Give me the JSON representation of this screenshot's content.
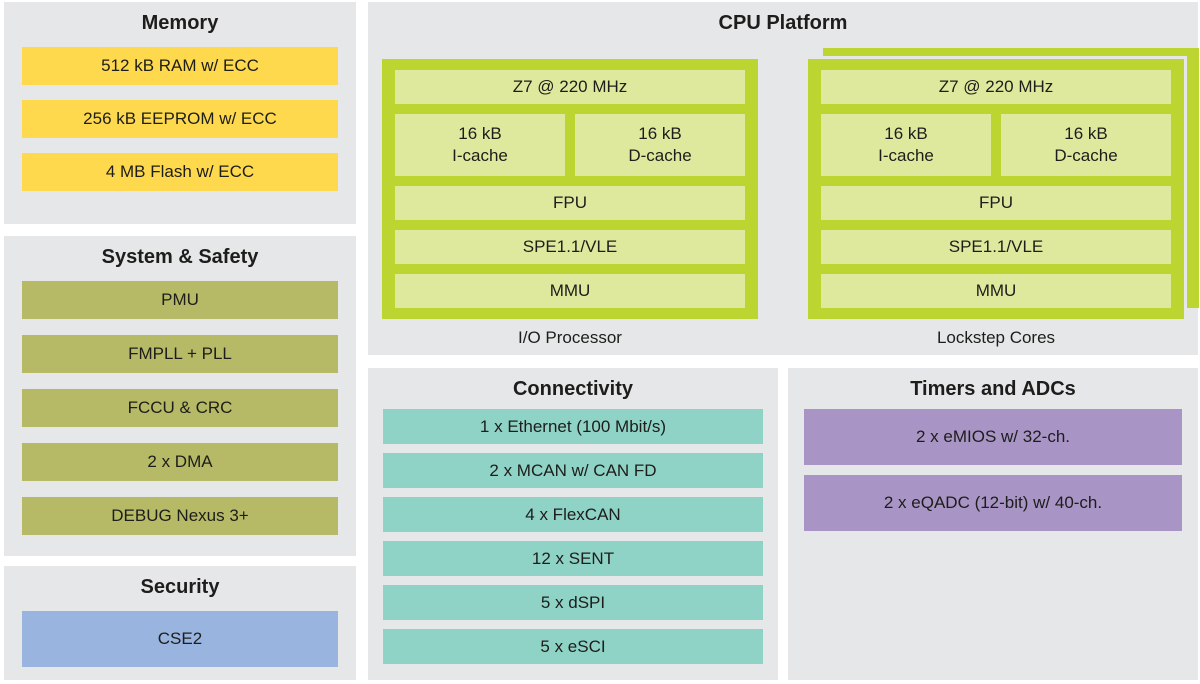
{
  "colors": {
    "page_bg": "#ffffff",
    "panel_bg": "#e6e7e8",
    "memory_block": "#ffd94d",
    "system_block": "#b6ba66",
    "security_block": "#99b5df",
    "core_frame": "#bdd531",
    "core_cell": "#dfe99e",
    "connectivity_block": "#8fd2c6",
    "timers_block": "#a995c5",
    "text": "#1d1d1b"
  },
  "memory": {
    "title": "Memory",
    "items": [
      "512 kB RAM w/ ECC",
      "256 kB EEPROM w/ ECC",
      "4 MB Flash w/ ECC"
    ]
  },
  "system_safety": {
    "title": "System & Safety",
    "items": [
      "PMU",
      "FMPLL + PLL",
      "FCCU & CRC",
      "2 x DMA",
      "DEBUG Nexus 3+"
    ]
  },
  "security": {
    "title": "Security",
    "items": [
      "CSE2"
    ]
  },
  "cpu_platform": {
    "title": "CPU Platform",
    "cores": [
      {
        "caption": "I/O Processor",
        "clock": "Z7 @ 220 MHz",
        "icache_line1": "16 kB",
        "icache_line2": "I-cache",
        "dcache_line1": "16 kB",
        "dcache_line2": "D-cache",
        "rows": [
          "FPU",
          "SPE1.1/VLE",
          "MMU"
        ]
      },
      {
        "caption": "Lockstep Cores",
        "clock": "Z7 @ 220 MHz",
        "icache_line1": "16 kB",
        "icache_line2": "I-cache",
        "dcache_line1": "16 kB",
        "dcache_line2": "D-cache",
        "rows": [
          "FPU",
          "SPE1.1/VLE",
          "MMU"
        ]
      }
    ]
  },
  "connectivity": {
    "title": "Connectivity",
    "items": [
      "1 x Ethernet (100 Mbit/s)",
      "2 x MCAN w/ CAN FD",
      "4 x FlexCAN",
      "12 x SENT",
      "5 x dSPI",
      "5 x eSCI"
    ]
  },
  "timers_adcs": {
    "title": "Timers and ADCs",
    "items": [
      "2 x eMIOS w/ 32-ch.",
      "2 x eQADC (12-bit) w/ 40-ch."
    ]
  }
}
